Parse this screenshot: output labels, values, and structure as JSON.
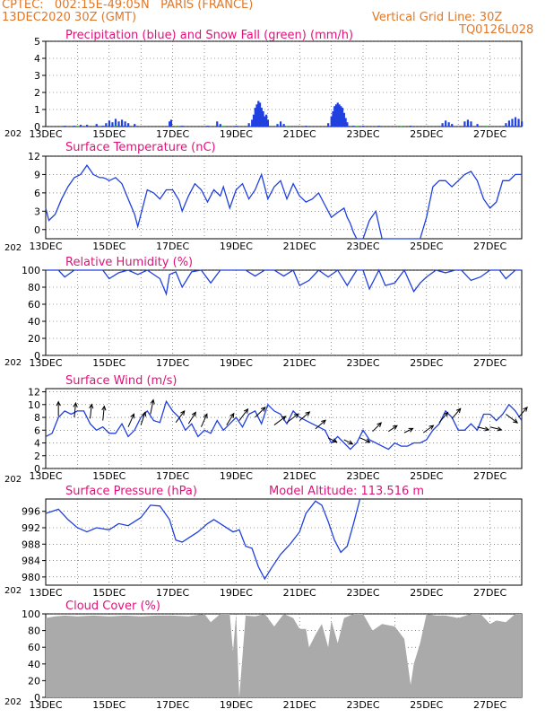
{
  "header": {
    "station_line": "CPTEC:   002:15E-49:05N   PARIS (FRANCE)",
    "run_time": "13DEC2020 30Z (GMT)",
    "grid_note": "Vertical Grid Line: 30Z",
    "model_code": "TQ0126L028",
    "model_altitude": "Model Altitude: 113.516 m"
  },
  "colors": {
    "header": "#e0782a",
    "title": "#e0127a",
    "series": "#2040e0",
    "snow": "#20c020",
    "cloud_fill": "#aaaaaa",
    "grid": "#444444"
  },
  "x_axis": {
    "day_labels": [
      "13DEC",
      "15DEC",
      "17DEC",
      "19DEC",
      "21DEC",
      "23DEC",
      "25DEC",
      "27DEC"
    ],
    "day_values": [
      13,
      15,
      17,
      19,
      21,
      23,
      25,
      27
    ],
    "range": [
      13,
      28
    ],
    "year_fragment": "202"
  },
  "chart_data": [
    {
      "id": "precip",
      "type": "bar",
      "title": "Precipitation (blue) and Snow Fall (green) (mm/h)",
      "ylim": [
        0,
        5
      ],
      "yticks": [
        0,
        1,
        2,
        3,
        4,
        5
      ],
      "grid": true,
      "series": [
        {
          "name": "Precipitation",
          "points": [
            [
              13.6,
              0.05
            ],
            [
              13.9,
              0.05
            ],
            [
              14.1,
              0.1
            ],
            [
              14.3,
              0.1
            ],
            [
              14.6,
              0.15
            ],
            [
              14.8,
              0.05
            ],
            [
              14.9,
              0.2
            ],
            [
              15.0,
              0.35
            ],
            [
              15.1,
              0.25
            ],
            [
              15.2,
              0.45
            ],
            [
              15.3,
              0.3
            ],
            [
              15.4,
              0.4
            ],
            [
              15.5,
              0.3
            ],
            [
              15.6,
              0.2
            ],
            [
              15.8,
              0.15
            ],
            [
              16.9,
              0.3
            ],
            [
              16.95,
              0.4
            ],
            [
              17.3,
              0.05
            ],
            [
              18.1,
              0.05
            ],
            [
              18.4,
              0.3
            ],
            [
              18.5,
              0.15
            ],
            [
              19.0,
              0.05
            ],
            [
              19.4,
              0.2
            ],
            [
              19.5,
              0.4
            ],
            [
              19.55,
              0.7
            ],
            [
              19.6,
              1.1
            ],
            [
              19.65,
              1.3
            ],
            [
              19.7,
              1.5
            ],
            [
              19.75,
              1.4
            ],
            [
              19.8,
              1.1
            ],
            [
              19.85,
              0.9
            ],
            [
              19.9,
              0.6
            ],
            [
              19.95,
              0.7
            ],
            [
              20.0,
              0.4
            ],
            [
              20.3,
              0.15
            ],
            [
              20.4,
              0.3
            ],
            [
              20.5,
              0.15
            ],
            [
              21.2,
              0.05
            ],
            [
              21.9,
              0.2
            ],
            [
              22.0,
              0.6
            ],
            [
              22.05,
              0.9
            ],
            [
              22.1,
              1.2
            ],
            [
              22.15,
              1.3
            ],
            [
              22.2,
              1.4
            ],
            [
              22.25,
              1.3
            ],
            [
              22.3,
              1.2
            ],
            [
              22.35,
              1.1
            ],
            [
              22.4,
              0.8
            ],
            [
              22.45,
              0.5
            ],
            [
              22.5,
              0.25
            ],
            [
              22.7,
              0.05
            ],
            [
              23.0,
              0.05
            ],
            [
              23.5,
              0.05
            ],
            [
              24.5,
              0.05
            ],
            [
              25.5,
              0.2
            ],
            [
              25.6,
              0.35
            ],
            [
              25.7,
              0.25
            ],
            [
              25.8,
              0.15
            ],
            [
              26.2,
              0.3
            ],
            [
              26.3,
              0.4
            ],
            [
              26.4,
              0.3
            ],
            [
              26.6,
              0.15
            ],
            [
              27.5,
              0.2
            ],
            [
              27.6,
              0.35
            ],
            [
              27.7,
              0.45
            ],
            [
              27.8,
              0.55
            ],
            [
              27.9,
              0.45
            ],
            [
              28.0,
              0.3
            ]
          ]
        },
        {
          "name": "Snow Fall",
          "points": [
            [
              14.0,
              0.04
            ],
            [
              15.2,
              0.04
            ],
            [
              17.1,
              0.04
            ],
            [
              18.6,
              0.04
            ],
            [
              20.6,
              0.04
            ],
            [
              22.8,
              0.04
            ],
            [
              24.2,
              0.04
            ],
            [
              26.9,
              0.04
            ]
          ]
        }
      ]
    },
    {
      "id": "temp",
      "type": "line",
      "title": "Surface Temperature (nC)",
      "ylim": [
        -1.5,
        12
      ],
      "yticks": [
        0,
        3,
        6,
        9,
        12
      ],
      "grid": true,
      "x": [
        13.0,
        13.1,
        13.3,
        13.5,
        13.7,
        13.9,
        14.1,
        14.3,
        14.5,
        14.7,
        14.8,
        14.9,
        15.0,
        15.2,
        15.4,
        15.6,
        15.8,
        15.9,
        16.0,
        16.2,
        16.4,
        16.6,
        16.8,
        17.0,
        17.2,
        17.3,
        17.5,
        17.7,
        17.9,
        18.1,
        18.3,
        18.5,
        18.6,
        18.8,
        19.0,
        19.2,
        19.4,
        19.6,
        19.8,
        20.0,
        20.2,
        20.4,
        20.6,
        20.8,
        21.0,
        21.2,
        21.4,
        21.6,
        21.8,
        22.0,
        22.2,
        22.4,
        22.5,
        22.6,
        22.7,
        22.8,
        22.9,
        23.0,
        23.2,
        23.4,
        23.6,
        23.8,
        24.0,
        24.2,
        24.4,
        24.6,
        24.8,
        25.0,
        25.2,
        25.4,
        25.6,
        25.8,
        26.0,
        26.2,
        26.4,
        26.6,
        26.8,
        27.0,
        27.2,
        27.4,
        27.6,
        27.8,
        28.0
      ],
      "y": [
        3.5,
        1.5,
        2.5,
        5.0,
        7.0,
        8.5,
        9.0,
        10.5,
        9.0,
        8.5,
        8.5,
        8.3,
        8.0,
        8.5,
        7.5,
        5.0,
        2.5,
        0.5,
        2.5,
        6.5,
        6.0,
        5.0,
        6.5,
        6.5,
        4.8,
        3.0,
        5.5,
        7.5,
        6.5,
        4.5,
        6.5,
        5.5,
        7.0,
        3.5,
        6.5,
        7.5,
        5.0,
        6.5,
        9.0,
        5.0,
        7.0,
        8.0,
        5.0,
        7.5,
        5.5,
        4.5,
        5.0,
        6.0,
        4.0,
        2.0,
        2.8,
        3.5,
        2.0,
        1.0,
        -0.5,
        -1.5,
        -1.5,
        -1.5,
        1.5,
        3.0,
        -1.5,
        -1.5,
        -1.5,
        -1.5,
        -1.5,
        -1.5,
        -1.5,
        2.0,
        7.0,
        8.0,
        8.0,
        7.0,
        8.0,
        9.0,
        9.5,
        8.0,
        5.0,
        3.5,
        4.5,
        8.0,
        8.0,
        9.0,
        9.0
      ]
    },
    {
      "id": "humidity",
      "type": "line",
      "title": "Relative Humidity (%)",
      "ylim": [
        0,
        100
      ],
      "yticks": [
        0,
        20,
        40,
        60,
        80,
        100
      ],
      "grid": true,
      "x": [
        13.0,
        13.4,
        13.6,
        13.9,
        14.3,
        14.6,
        14.8,
        15.0,
        15.3,
        15.6,
        15.9,
        16.2,
        16.6,
        16.8,
        16.9,
        17.1,
        17.3,
        17.6,
        17.9,
        18.2,
        18.5,
        18.7,
        19.0,
        19.3,
        19.6,
        19.9,
        20.2,
        20.5,
        20.8,
        21.0,
        21.3,
        21.6,
        21.9,
        22.2,
        22.5,
        22.8,
        23.0,
        23.2,
        23.5,
        23.7,
        24.0,
        24.3,
        24.6,
        24.8,
        25.0,
        25.3,
        25.6,
        25.9,
        26.1,
        26.4,
        26.7,
        27.0,
        27.3,
        27.5,
        27.8,
        28.0
      ],
      "y": [
        100,
        100,
        92,
        100,
        100,
        100,
        100,
        90,
        97,
        100,
        95,
        100,
        90,
        72,
        95,
        98,
        80,
        98,
        100,
        85,
        100,
        100,
        100,
        100,
        93,
        100,
        100,
        93,
        100,
        82,
        88,
        100,
        92,
        100,
        82,
        100,
        100,
        78,
        100,
        82,
        85,
        100,
        75,
        85,
        92,
        100,
        97,
        100,
        100,
        88,
        92,
        100,
        100,
        90,
        100,
        100
      ]
    },
    {
      "id": "wind",
      "type": "line",
      "title": "Surface Wind (m/s)",
      "ylim": [
        0,
        12.5
      ],
      "yticks": [
        0,
        2,
        4,
        6,
        8,
        10,
        12
      ],
      "grid": true,
      "x": [
        13.0,
        13.2,
        13.4,
        13.6,
        13.8,
        14.0,
        14.2,
        14.4,
        14.6,
        14.8,
        15.0,
        15.2,
        15.4,
        15.6,
        15.8,
        16.0,
        16.2,
        16.4,
        16.6,
        16.8,
        17.0,
        17.2,
        17.4,
        17.6,
        17.8,
        18.0,
        18.2,
        18.4,
        18.6,
        18.8,
        19.0,
        19.2,
        19.4,
        19.6,
        19.8,
        20.0,
        20.2,
        20.4,
        20.6,
        20.8,
        21.0,
        21.2,
        21.4,
        21.6,
        21.8,
        22.0,
        22.2,
        22.4,
        22.6,
        22.8,
        23.0,
        23.2,
        23.4,
        23.6,
        23.8,
        24.0,
        24.2,
        24.4,
        24.6,
        24.8,
        25.0,
        25.2,
        25.4,
        25.6,
        25.8,
        26.0,
        26.2,
        26.4,
        26.6,
        26.8,
        27.0,
        27.2,
        27.4,
        27.6,
        27.8,
        28.0
      ],
      "y": [
        5,
        5.5,
        8,
        9,
        8.5,
        9,
        9,
        7,
        6,
        6.5,
        5.5,
        5.5,
        7,
        5,
        6,
        8,
        9,
        7.5,
        7.2,
        10.5,
        9,
        8,
        6,
        7,
        5,
        6,
        5.5,
        7.5,
        6,
        7,
        8,
        6.5,
        8.5,
        9,
        7,
        10,
        9,
        8.5,
        7,
        9,
        8,
        7.5,
        7,
        6.5,
        6,
        4,
        5,
        4,
        3,
        4,
        6,
        4.5,
        4,
        3.5,
        3,
        4,
        3.5,
        3.5,
        4,
        4,
        4.5,
        6,
        7,
        9,
        8,
        6,
        6,
        7,
        6,
        8.5,
        8.5,
        7.5,
        8.5,
        10,
        9,
        7.5
      ]
    },
    {
      "id": "pressure",
      "type": "line",
      "title": "Surface Pressure (hPa)",
      "ylim": [
        978,
        999
      ],
      "yticks": [
        980,
        984,
        988,
        992,
        996
      ],
      "grid": true,
      "x": [
        13.0,
        13.2,
        13.4,
        13.7,
        14.0,
        14.3,
        14.6,
        15.0,
        15.3,
        15.6,
        16.0,
        16.3,
        16.6,
        16.9,
        17.1,
        17.3,
        17.5,
        17.8,
        18.1,
        18.3,
        18.6,
        18.9,
        19.1,
        19.3,
        19.5,
        19.7,
        19.9,
        20.1,
        20.4,
        20.7,
        21.0,
        21.2,
        21.5,
        21.7,
        21.9,
        22.1,
        22.3,
        22.5,
        22.7,
        22.9
      ],
      "y": [
        995.5,
        996,
        996.5,
        994,
        992,
        991,
        992,
        991.5,
        993,
        992.5,
        994.5,
        997.5,
        997.3,
        994,
        989,
        988.5,
        989.5,
        991,
        993,
        994,
        992.5,
        991,
        991.5,
        987.5,
        987,
        982.5,
        979.5,
        982,
        985.5,
        988,
        991,
        995.5,
        998.5,
        997.5,
        993.5,
        989,
        986,
        987.5,
        993,
        999
      ]
    },
    {
      "id": "cloud",
      "type": "area",
      "title": "Cloud Cover (%)",
      "ylim": [
        0,
        100
      ],
      "yticks": [
        0,
        20,
        40,
        60,
        80,
        100
      ],
      "grid": true,
      "x": [
        13.0,
        13.3,
        13.6,
        14.0,
        14.5,
        15.0,
        15.5,
        16.0,
        16.5,
        17.0,
        17.5,
        18.0,
        18.2,
        18.5,
        18.8,
        18.9,
        19.0,
        19.1,
        19.3,
        19.6,
        19.9,
        20.2,
        20.5,
        20.8,
        21.0,
        21.2,
        21.3,
        21.5,
        21.7,
        21.9,
        22.0,
        22.2,
        22.4,
        22.7,
        23.0,
        23.3,
        23.6,
        24.0,
        24.3,
        24.5,
        24.6,
        24.8,
        25.0,
        25.3,
        25.6,
        26.0,
        26.4,
        26.7,
        27.0,
        27.2,
        27.5,
        27.8,
        28.0
      ],
      "y": [
        95,
        97,
        98,
        97,
        98,
        97,
        98,
        97,
        98,
        98,
        97,
        100,
        90,
        100,
        100,
        55,
        100,
        0,
        98,
        97,
        100,
        85,
        100,
        95,
        82,
        82,
        60,
        75,
        88,
        60,
        92,
        65,
        95,
        100,
        100,
        80,
        88,
        85,
        70,
        15,
        40,
        65,
        100,
        98,
        98,
        95,
        100,
        100,
        88,
        92,
        90,
        100,
        100
      ]
    }
  ]
}
